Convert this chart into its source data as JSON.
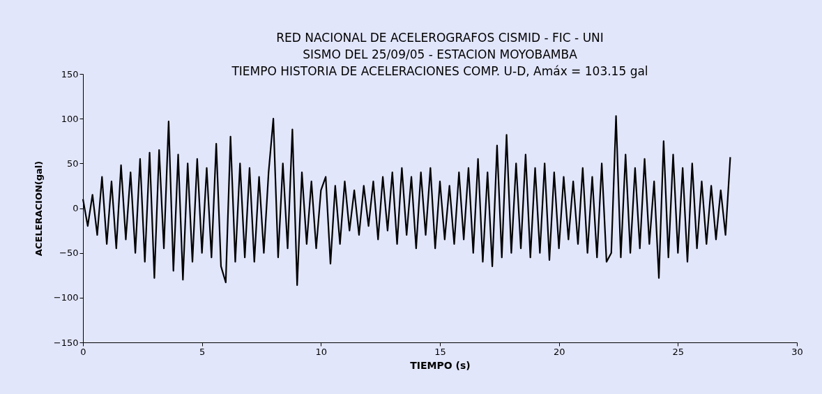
{
  "chart_data": {
    "type": "line",
    "title": "RED NACIONAL DE ACELEROGRAFOS CISMID - FIC - UNI\nSISMO DEL 25/09/05 - ESTACION MOYOBAMBA\nTIEMPO HISTORIA DE ACELERACIONES COMP. U-D, Amáx = 103.15 gal",
    "xlabel": "TIEMPO (s)",
    "ylabel": "ACELERACION(gal)",
    "xlim": [
      0,
      30
    ],
    "xticks": [
      0,
      5,
      10,
      15,
      20,
      25,
      30
    ],
    "ylim": [
      -150,
      150
    ],
    "yticks": [
      -150,
      -100,
      -50,
      0,
      50,
      100,
      150
    ],
    "grid": false,
    "legend": false,
    "marker": "none",
    "line_style": "solid",
    "x": [
      0,
      0.2,
      0.4,
      0.6,
      0.8,
      1.0,
      1.2,
      1.4,
      1.6,
      1.8,
      2.0,
      2.2,
      2.4,
      2.6,
      2.8,
      3.0,
      3.2,
      3.4,
      3.6,
      3.8,
      4.0,
      4.2,
      4.4,
      4.6,
      4.8,
      5.0,
      5.2,
      5.4,
      5.6,
      5.8,
      6.0,
      6.2,
      6.4,
      6.6,
      6.8,
      7.0,
      7.2,
      7.4,
      7.6,
      7.8,
      8.0,
      8.2,
      8.4,
      8.6,
      8.8,
      9.0,
      9.2,
      9.4,
      9.6,
      9.8,
      10.0,
      10.2,
      10.4,
      10.6,
      10.8,
      11.0,
      11.2,
      11.4,
      11.6,
      11.8,
      12.0,
      12.2,
      12.4,
      12.6,
      12.8,
      13.0,
      13.2,
      13.4,
      13.6,
      13.8,
      14.0,
      14.2,
      14.4,
      14.6,
      14.8,
      15.0,
      15.2,
      15.4,
      15.6,
      15.8,
      16.0,
      16.2,
      16.4,
      16.6,
      16.8,
      17.0,
      17.2,
      17.4,
      17.6,
      17.8,
      18.0,
      18.2,
      18.4,
      18.6,
      18.8,
      19.0,
      19.2,
      19.4,
      19.6,
      19.8,
      20.0,
      20.2,
      20.4,
      20.6,
      20.8,
      21.0,
      21.2,
      21.4,
      21.6,
      21.8,
      22.0,
      22.2,
      22.4,
      22.6,
      22.8,
      23.0,
      23.2,
      23.4,
      23.6,
      23.8,
      24.0,
      24.2,
      24.4,
      24.6,
      24.8,
      25.0,
      25.2,
      25.4,
      25.6,
      25.8,
      26.0,
      26.2,
      26.4,
      26.6,
      26.8,
      27.0,
      27.2
    ],
    "series": [
      {
        "color": "#000000",
        "values": [
          10,
          -20,
          15,
          -30,
          35,
          -40,
          30,
          -45,
          48,
          -35,
          40,
          -50,
          55,
          -60,
          62,
          -78,
          65,
          -45,
          97,
          -70,
          60,
          -80,
          50,
          -60,
          55,
          -50,
          45,
          -55,
          72,
          -65,
          -83,
          80,
          -60,
          50,
          -55,
          45,
          -60,
          35,
          -50,
          40,
          100,
          -55,
          50,
          -45,
          88,
          -86,
          40,
          -40,
          30,
          -45,
          20,
          35,
          -62,
          25,
          -40,
          30,
          -25,
          20,
          -30,
          25,
          -20,
          30,
          -35,
          35,
          -25,
          40,
          -40,
          45,
          -30,
          35,
          -45,
          40,
          -30,
          45,
          -45,
          30,
          -35,
          25,
          -40,
          40,
          -35,
          45,
          -50,
          55,
          -60,
          40,
          -65,
          70,
          -55,
          82,
          -50,
          50,
          -45,
          60,
          -55,
          45,
          -50,
          50,
          -58,
          40,
          -45,
          35,
          -35,
          30,
          -40,
          45,
          -50,
          35,
          -55,
          50,
          -60,
          -50,
          103,
          -55,
          60,
          -50,
          45,
          -45,
          55,
          -40,
          30,
          -78,
          75,
          -55,
          60,
          -50,
          45,
          -60,
          50,
          -45,
          30,
          -40,
          25,
          -35,
          20,
          -30,
          57
        ]
      }
    ]
  }
}
